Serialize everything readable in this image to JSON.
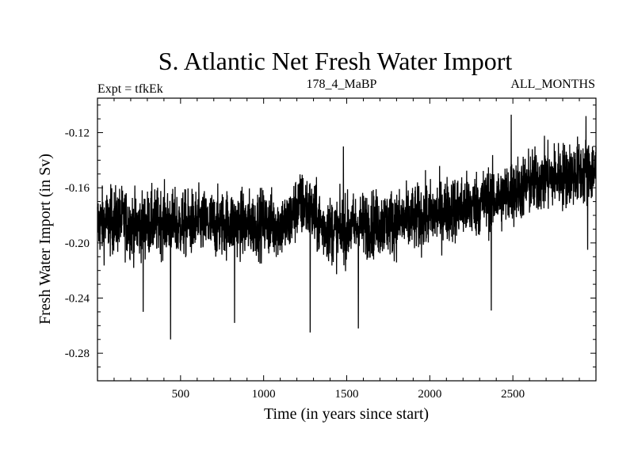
{
  "chart_data": {
    "type": "line",
    "title": "S. Atlantic Net Fresh Water Import",
    "subtitle_left": "Expt = tfkEk",
    "subtitle_center": "178_4_MaBP",
    "subtitle_right": "ALL_MONTHS",
    "xlabel": "Time (in years since start)",
    "ylabel": "Fresh Water Import (in Sv)",
    "xlim": [
      0,
      3000
    ],
    "ylim": [
      -0.3,
      -0.095
    ],
    "x_ticks": [
      500,
      1000,
      1500,
      2000,
      2500
    ],
    "x_tick_labels": [
      "500",
      "1000",
      "1500",
      "2000",
      "2500"
    ],
    "y_ticks": [
      -0.12,
      -0.16,
      -0.2,
      -0.24,
      -0.28
    ],
    "y_tick_labels": [
      "-0.12",
      "-0.16",
      "-0.20",
      "-0.24",
      "-0.28"
    ],
    "grid": false,
    "legend": "none",
    "series_color": "#000000",
    "series": [
      {
        "x": [
          0,
          50,
          100,
          150,
          200,
          250,
          300,
          350,
          400,
          450,
          500,
          550,
          600,
          650,
          700,
          750,
          800,
          850,
          900,
          950,
          1000,
          1050,
          1100,
          1150,
          1200,
          1250,
          1300,
          1350,
          1400,
          1450,
          1500,
          1550,
          1600,
          1650,
          1700,
          1750,
          1800,
          1850,
          1900,
          1950,
          2000,
          2050,
          2100,
          2150,
          2200,
          2250,
          2300,
          2350,
          2400,
          2450,
          2500,
          2550,
          2600,
          2650,
          2700,
          2750,
          2800,
          2850,
          2900,
          2950,
          3000
        ],
        "values": [
          -0.186,
          -0.185,
          -0.184,
          -0.183,
          -0.187,
          -0.188,
          -0.186,
          -0.185,
          -0.184,
          -0.186,
          -0.187,
          -0.186,
          -0.185,
          -0.186,
          -0.187,
          -0.186,
          -0.185,
          -0.186,
          -0.187,
          -0.186,
          -0.185,
          -0.186,
          -0.187,
          -0.186,
          -0.174,
          -0.172,
          -0.18,
          -0.188,
          -0.19,
          -0.192,
          -0.19,
          -0.188,
          -0.187,
          -0.186,
          -0.186,
          -0.185,
          -0.185,
          -0.184,
          -0.183,
          -0.181,
          -0.18,
          -0.178,
          -0.176,
          -0.175,
          -0.174,
          -0.173,
          -0.171,
          -0.169,
          -0.168,
          -0.166,
          -0.163,
          -0.16,
          -0.157,
          -0.155,
          -0.153,
          -0.152,
          -0.151,
          -0.15,
          -0.149,
          -0.148,
          -0.147
        ]
      }
    ],
    "noise_amplitude": 0.012,
    "notable_extremes": [
      {
        "x": 440,
        "value": -0.27
      },
      {
        "x": 275,
        "value": -0.25
      },
      {
        "x": 825,
        "value": -0.258
      },
      {
        "x": 1280,
        "value": -0.265
      },
      {
        "x": 1570,
        "value": -0.262
      },
      {
        "x": 2370,
        "value": -0.249
      },
      {
        "x": 2950,
        "value": -0.205
      },
      {
        "x": 2490,
        "value": -0.107
      },
      {
        "x": 2940,
        "value": -0.108
      },
      {
        "x": 1480,
        "value": -0.13
      }
    ]
  }
}
